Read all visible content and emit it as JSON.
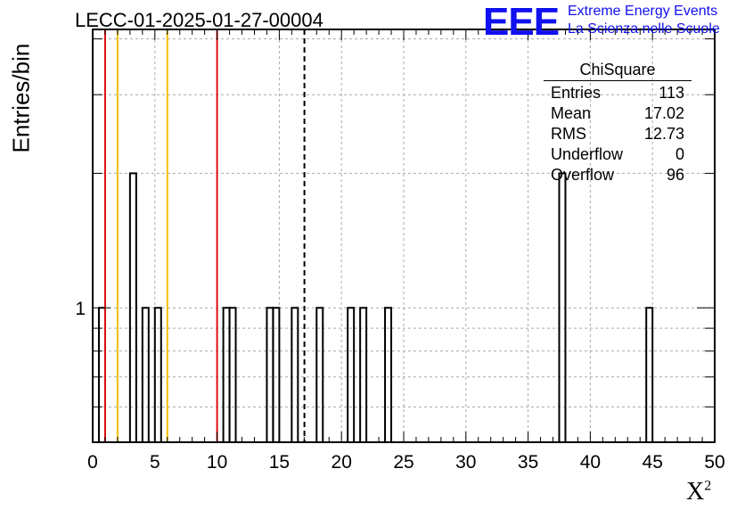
{
  "chart_data": {
    "type": "bar",
    "title": "LECC-01-2025-01-27-00004",
    "xlabel": "X",
    "xlabel_sup": "2",
    "ylabel": "Entries/bin",
    "xlim": [
      0,
      50
    ],
    "ylim": [
      0.5,
      4.2
    ],
    "log_y": true,
    "grid": true,
    "bin_width": 0.5,
    "x_ticks": [
      "0",
      "5",
      "10",
      "15",
      "20",
      "25",
      "30",
      "35",
      "40",
      "45",
      "50"
    ],
    "y_tick_labels": [
      {
        "value": 1,
        "label": "1"
      }
    ],
    "bins": [
      {
        "x": 0.5,
        "count": 1
      },
      {
        "x": 3.0,
        "count": 2
      },
      {
        "x": 4.0,
        "count": 1
      },
      {
        "x": 5.0,
        "count": 1
      },
      {
        "x": 10.5,
        "count": 1
      },
      {
        "x": 11.0,
        "count": 1
      },
      {
        "x": 14.0,
        "count": 1
      },
      {
        "x": 14.5,
        "count": 1
      },
      {
        "x": 16.0,
        "count": 1
      },
      {
        "x": 18.0,
        "count": 1
      },
      {
        "x": 20.5,
        "count": 1
      },
      {
        "x": 21.5,
        "count": 1
      },
      {
        "x": 23.5,
        "count": 1
      },
      {
        "x": 37.5,
        "count": 2
      },
      {
        "x": 44.5,
        "count": 1
      }
    ],
    "reference_lines": [
      {
        "x": 1.0,
        "color": "#e01010",
        "style": "solid"
      },
      {
        "x": 2.0,
        "color": "#f0c000",
        "style": "solid"
      },
      {
        "x": 6.0,
        "color": "#f0c000",
        "style": "solid"
      },
      {
        "x": 10.0,
        "color": "#e01010",
        "style": "solid"
      },
      {
        "x": 17.02,
        "color": "#000000",
        "style": "dashed"
      }
    ],
    "stats": {
      "name": "ChiSquare",
      "rows": [
        {
          "label": "Entries",
          "value": "113"
        },
        {
          "label": "Mean",
          "value": "17.02"
        },
        {
          "label": "RMS",
          "value": "12.73"
        },
        {
          "label": "Underflow",
          "value": "0"
        },
        {
          "label": "Overflow",
          "value": "96"
        }
      ]
    }
  },
  "logo": {
    "text": "EEE",
    "line1": "Extreme Energy Events",
    "line2": "La Scienza nelle Scuole",
    "color": "#1010f0"
  }
}
